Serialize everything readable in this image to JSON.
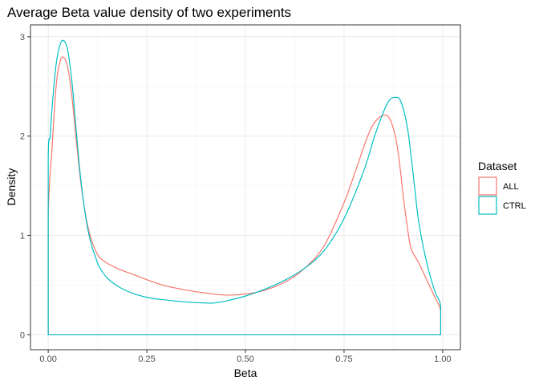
{
  "chart_data": {
    "type": "line",
    "title": "Average Beta value density of two experiments",
    "xlabel": "Beta",
    "ylabel": "Density",
    "xlim": [
      -0.045,
      1.045
    ],
    "ylim": [
      -0.15,
      3.12
    ],
    "x_ticks": [
      0,
      0.25,
      0.5,
      0.75,
      1
    ],
    "x_tick_labels": [
      "0.00",
      "0.25",
      "0.50",
      "0.75",
      "1.00"
    ],
    "y_ticks": [
      0,
      1,
      2,
      3
    ],
    "y_tick_labels": [
      "0",
      "1",
      "2",
      "3"
    ],
    "grid": true,
    "legend": {
      "title": "Dataset",
      "position": "right"
    },
    "series": [
      {
        "name": "ALL",
        "color": "#F8766D",
        "x": [
          0,
          0,
          0.01,
          0.02,
          0.03,
          0.04,
          0.05,
          0.06,
          0.07,
          0.08,
          0.09,
          0.1,
          0.11,
          0.12,
          0.13,
          0.15,
          0.18,
          0.22,
          0.26,
          0.3,
          0.35,
          0.4,
          0.45,
          0.5,
          0.55,
          0.6,
          0.65,
          0.7,
          0.75,
          0.78,
          0.81,
          0.83,
          0.85,
          0.865,
          0.88,
          0.89,
          0.9,
          0.91,
          0.92,
          0.94,
          0.96,
          0.98,
          0.995,
          0.995,
          0
        ],
        "y": [
          0,
          1.2,
          1.9,
          2.5,
          2.75,
          2.79,
          2.68,
          2.4,
          2.0,
          1.62,
          1.32,
          1.1,
          0.95,
          0.85,
          0.78,
          0.72,
          0.66,
          0.6,
          0.54,
          0.49,
          0.45,
          0.42,
          0.4,
          0.41,
          0.45,
          0.53,
          0.67,
          0.9,
          1.33,
          1.66,
          2.0,
          2.15,
          2.21,
          2.18,
          2.0,
          1.75,
          1.4,
          1.1,
          0.87,
          0.72,
          0.55,
          0.38,
          0.24,
          0,
          0
        ]
      },
      {
        "name": "CTRL",
        "color": "#00BFC4",
        "x": [
          0,
          0,
          0.005,
          0.01,
          0.02,
          0.03,
          0.04,
          0.05,
          0.06,
          0.07,
          0.08,
          0.09,
          0.1,
          0.11,
          0.12,
          0.13,
          0.15,
          0.18,
          0.22,
          0.26,
          0.3,
          0.35,
          0.4,
          0.42,
          0.45,
          0.5,
          0.55,
          0.6,
          0.65,
          0.7,
          0.75,
          0.8,
          0.83,
          0.86,
          0.88,
          0.895,
          0.91,
          0.92,
          0.93,
          0.94,
          0.96,
          0.98,
          0.995,
          0.995,
          0
        ],
        "y": [
          0,
          1.75,
          2.0,
          2.3,
          2.72,
          2.92,
          2.96,
          2.85,
          2.55,
          2.1,
          1.66,
          1.32,
          1.07,
          0.9,
          0.78,
          0.68,
          0.57,
          0.48,
          0.41,
          0.37,
          0.35,
          0.33,
          0.32,
          0.32,
          0.34,
          0.39,
          0.46,
          0.55,
          0.67,
          0.85,
          1.17,
          1.65,
          2.03,
          2.33,
          2.39,
          2.34,
          2.1,
          1.8,
          1.45,
          1.12,
          0.72,
          0.44,
          0.29,
          0,
          0
        ]
      }
    ]
  }
}
